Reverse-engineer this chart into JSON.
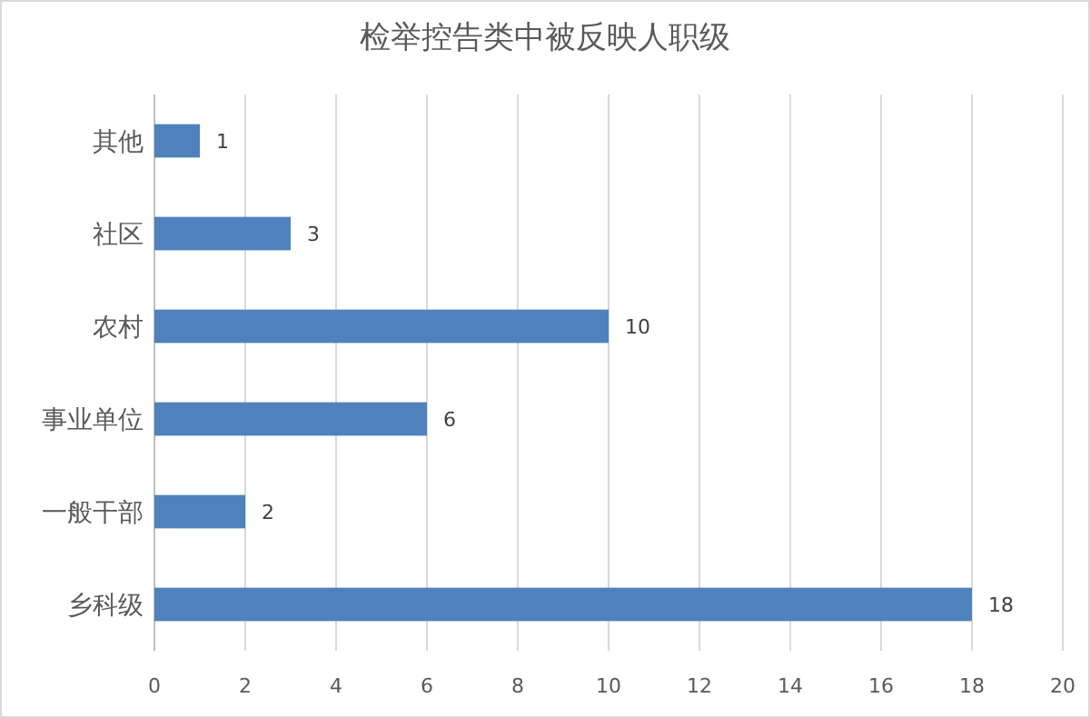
{
  "chart_data": {
    "type": "bar",
    "orientation": "horizontal",
    "title": "检举控告类中被反映人职级",
    "categories": [
      "其他",
      "社区",
      "农村",
      "事业单位",
      "一般干部",
      "乡科级"
    ],
    "values": [
      1,
      3,
      10,
      6,
      2,
      18
    ],
    "color": "#4f81bd",
    "xlim": [
      0,
      20
    ],
    "xticks": [
      0,
      2,
      4,
      6,
      8,
      10,
      12,
      14,
      16,
      18,
      20
    ],
    "grid": "x",
    "data_labels": true
  }
}
